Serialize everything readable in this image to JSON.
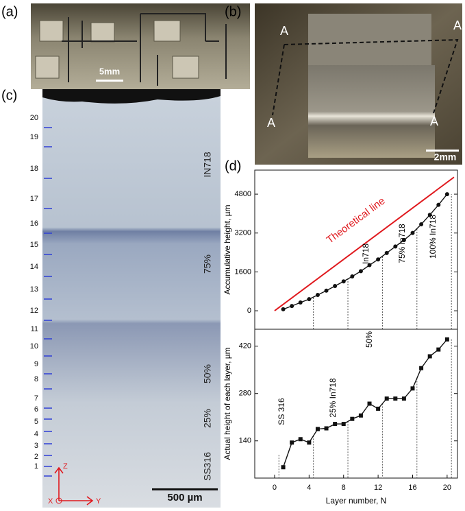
{
  "panels": {
    "a": "(a)",
    "b": "(b)",
    "c": "(c)",
    "d": "(d)"
  },
  "photo_a": {
    "scale_bar": "5mm"
  },
  "photo_b": {
    "section_labels": [
      "A",
      "A",
      "A",
      "A"
    ],
    "scale_bar": "2mm"
  },
  "photo_c": {
    "layer_numbers": [
      20,
      19,
      18,
      17,
      16,
      15,
      14,
      13,
      12,
      11,
      10,
      9,
      8,
      7,
      6,
      5,
      4,
      3,
      2,
      1
    ],
    "region_labels": [
      "IN718",
      "75%",
      "50%",
      "25%",
      "SS316"
    ],
    "scale_bar": "500 µm",
    "axes": [
      "Z",
      "X",
      "Y"
    ]
  },
  "chart_data": [
    {
      "type": "line",
      "ylabel": "Accumulative height, µm",
      "x": [
        1,
        2,
        3,
        4,
        5,
        6,
        7,
        8,
        9,
        10,
        11,
        12,
        13,
        14,
        15,
        16,
        17,
        18,
        19,
        20
      ],
      "xlim": [
        -2.3,
        21.2
      ],
      "ylim": [
        -760,
        5790
      ],
      "yticks": [
        0,
        1600,
        3200,
        4800
      ],
      "series": [
        {
          "color": "#111111",
          "marker": "circle",
          "values": [
            62,
            197,
            342,
            477,
            652,
            829,
            1019,
            1209,
            1414,
            1629,
            1879,
            2114,
            2379,
            2644,
            2909,
            3204,
            3559,
            3949,
            4359,
            4799
          ]
        }
      ],
      "reference_line": {
        "label": "Theoretical line",
        "color": "#e0191e",
        "x": [
          0,
          20.8
        ],
        "values": [
          0,
          5500
        ]
      },
      "dividers": [
        4.5,
        8.5,
        12.5,
        16.5,
        20.5
      ],
      "region_labels": [
        "In718",
        "75% In718",
        "100% In718"
      ]
    },
    {
      "type": "line",
      "ylabel": "Actual height of each layer, µm",
      "xlabel": "Layer number, N",
      "x": [
        1,
        2,
        3,
        4,
        5,
        6,
        7,
        8,
        9,
        10,
        11,
        12,
        13,
        14,
        15,
        16,
        17,
        18,
        19,
        20
      ],
      "xlim": [
        -2.3,
        21.2
      ],
      "xticks": [
        0,
        4,
        8,
        12,
        16,
        20
      ],
      "ylim": [
        30,
        470
      ],
      "yticks": [
        140,
        280,
        420
      ],
      "series": [
        {
          "color": "#111111",
          "marker": "square",
          "values": [
            62,
            135,
            145,
            135,
            175,
            177,
            190,
            190,
            205,
            215,
            250,
            235,
            265,
            265,
            265,
            295,
            355,
            390,
            410,
            440
          ]
        }
      ],
      "dividers": [
        0.5,
        4.5,
        8.5,
        12.5,
        16.5,
        20.5
      ],
      "region_labels": [
        "SS 316",
        "25% In718",
        "50%"
      ]
    }
  ]
}
